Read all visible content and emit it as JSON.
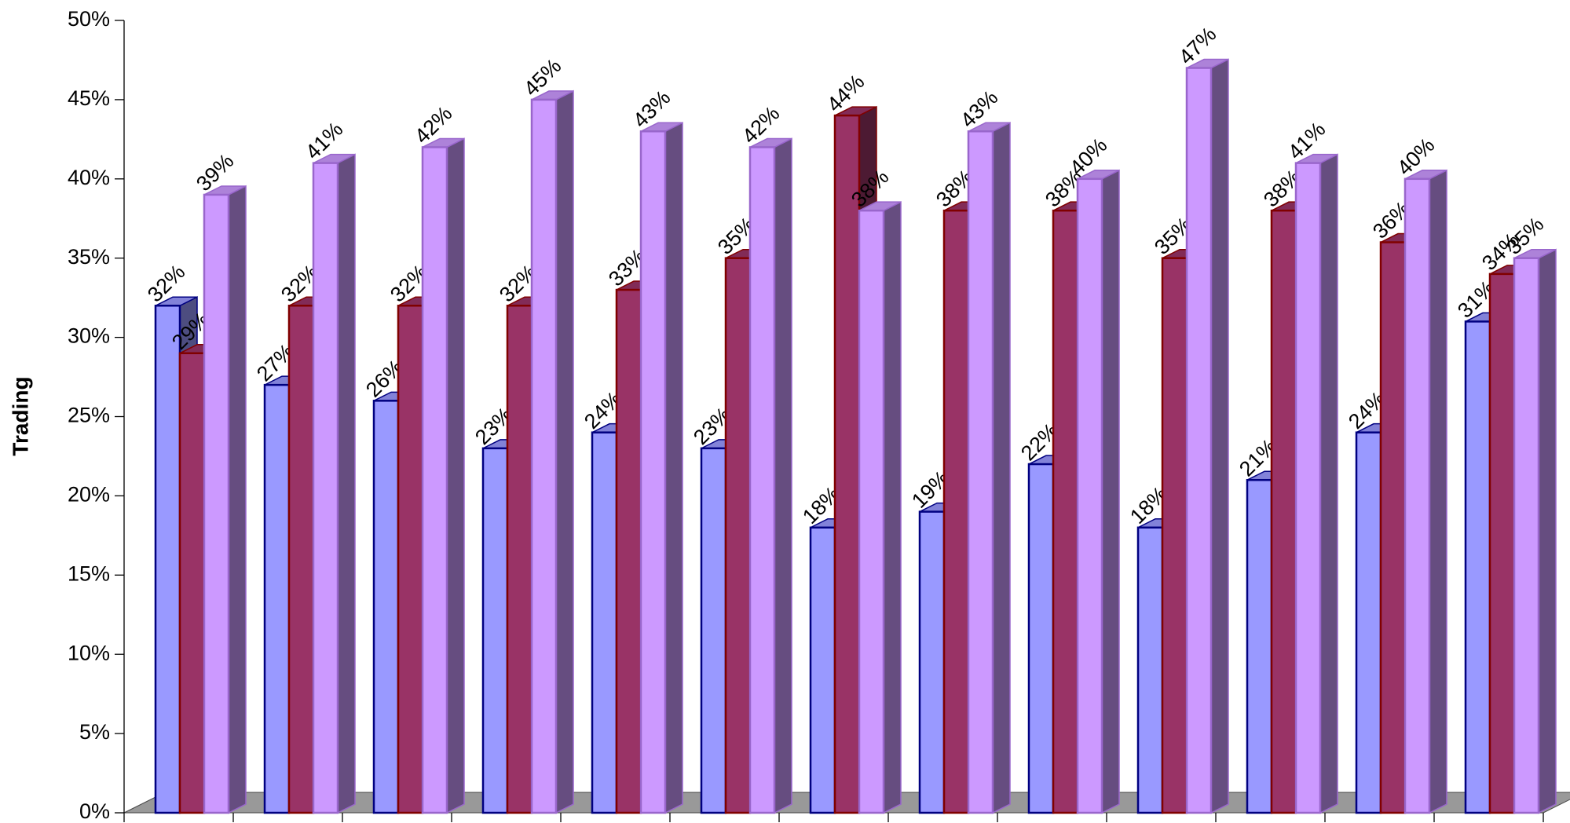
{
  "chart_data": {
    "type": "bar3d",
    "y_label": "Trading",
    "categories": [
      null,
      null,
      null,
      null,
      null,
      null,
      null,
      null,
      null,
      null,
      null,
      null,
      null
    ],
    "series": [
      {
        "color": "#9999ff",
        "edge": "#000080",
        "values": [
          32,
          27,
          26,
          23,
          24,
          23,
          18,
          19,
          22,
          18,
          21,
          24,
          31
        ],
        "value_labels": [
          "32%",
          "27%",
          "26%",
          "23%",
          "24%",
          "23%",
          "18%",
          "19%",
          "22%",
          "18%",
          "21%",
          "24%",
          "31%"
        ]
      },
      {
        "color": "#993366",
        "edge": "#800000",
        "values": [
          29,
          32,
          32,
          32,
          33,
          35,
          44,
          38,
          38,
          35,
          38,
          36,
          34
        ],
        "value_labels": [
          "29%",
          "32%",
          "32%",
          "32%",
          "33%",
          "35%",
          "44%",
          "38%",
          "38%",
          "35%",
          "38%",
          "36%",
          "34%"
        ]
      },
      {
        "color": "#cc99ff",
        "edge": "#9966cc",
        "values": [
          39,
          41,
          42,
          45,
          43,
          42,
          38,
          43,
          40,
          47,
          41,
          40,
          35
        ],
        "value_labels": [
          "39%",
          "41%",
          "42%",
          "45%",
          "43%",
          "42%",
          "38%",
          "43%",
          "40%",
          "47%",
          "41%",
          "40%",
          "35%"
        ]
      }
    ],
    "ylim": [
      0,
      50
    ],
    "yticks": [
      {
        "value": 0,
        "label": "0%"
      },
      {
        "value": 5,
        "label": "5%"
      },
      {
        "value": 10,
        "label": "10%"
      },
      {
        "value": 15,
        "label": "15%"
      },
      {
        "value": 20,
        "label": "20%"
      },
      {
        "value": 25,
        "label": "25%"
      },
      {
        "value": 30,
        "label": "30%"
      },
      {
        "value": 35,
        "label": "35%"
      },
      {
        "value": 40,
        "label": "40%"
      },
      {
        "value": 45,
        "label": "45%"
      },
      {
        "value": 50,
        "label": "50%"
      }
    ]
  }
}
